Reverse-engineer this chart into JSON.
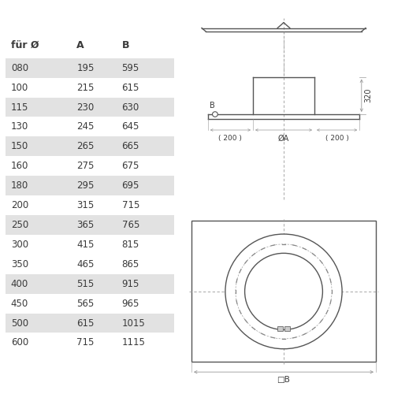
{
  "table_headers": [
    "für Ø",
    "A",
    "B"
  ],
  "table_rows": [
    [
      "080",
      "195",
      "595"
    ],
    [
      "100",
      "215",
      "615"
    ],
    [
      "115",
      "230",
      "630"
    ],
    [
      "130",
      "245",
      "645"
    ],
    [
      "150",
      "265",
      "665"
    ],
    [
      "160",
      "275",
      "675"
    ],
    [
      "180",
      "295",
      "695"
    ],
    [
      "200",
      "315",
      "715"
    ],
    [
      "250",
      "365",
      "765"
    ],
    [
      "300",
      "415",
      "815"
    ],
    [
      "350",
      "465",
      "865"
    ],
    [
      "400",
      "515",
      "915"
    ],
    [
      "450",
      "565",
      "965"
    ],
    [
      "500",
      "615",
      "1015"
    ],
    [
      "600",
      "715",
      "1115"
    ]
  ],
  "shaded_rows": [
    0,
    2,
    4,
    6,
    8,
    11,
    13
  ],
  "bg_color": "#ffffff",
  "shade_color": "#e2e2e2",
  "text_color": "#3a3a3a",
  "line_color": "#999999",
  "draw_color": "#555555",
  "dim_label_320": "320",
  "dim_label_200_left": "( 200 )",
  "dim_label_200_right": "( 200 )",
  "dim_label_phiA": "ØA",
  "dim_label_B": "B",
  "dim_label_sqB": "□B"
}
